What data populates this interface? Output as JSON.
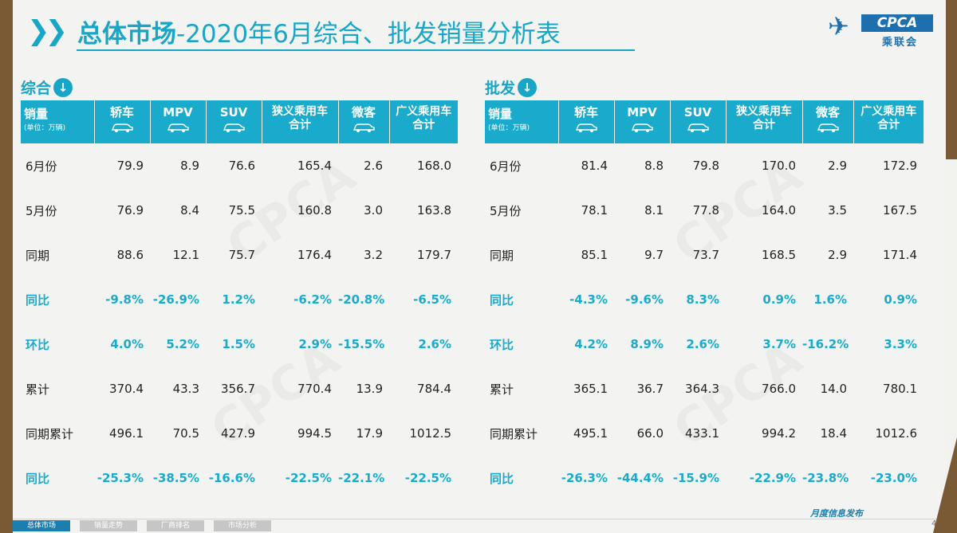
{
  "header": {
    "title_main": "总体市场",
    "title_sub": "-2020年6月综合、批发销量分析表",
    "logo_text": "CPCA",
    "logo_cn": "乘联会"
  },
  "sections": {
    "left_label": "综合",
    "right_label": "批发"
  },
  "table_header": {
    "first_main": "销量",
    "first_sub": "(单位：万辆)",
    "columns": [
      "轿车",
      "MPV",
      "SUV",
      "狭义乘用车合计",
      "微客",
      "广义乘用车合计"
    ]
  },
  "left_table": [
    {
      "label": "6月份",
      "vals": [
        "79.9",
        "8.9",
        "76.6",
        "165.4",
        "2.6",
        "168.0"
      ],
      "hl": false
    },
    {
      "label": "5月份",
      "vals": [
        "76.9",
        "8.4",
        "75.5",
        "160.8",
        "3.0",
        "163.8"
      ],
      "hl": false
    },
    {
      "label": "同期",
      "vals": [
        "88.6",
        "12.1",
        "75.7",
        "176.4",
        "3.2",
        "179.7"
      ],
      "hl": false
    },
    {
      "label": "同比",
      "vals": [
        "-9.8%",
        "-26.9%",
        "1.2%",
        "-6.2%",
        "-20.8%",
        "-6.5%"
      ],
      "hl": true
    },
    {
      "label": "环比",
      "vals": [
        "4.0%",
        "5.2%",
        "1.5%",
        "2.9%",
        "-15.5%",
        "2.6%"
      ],
      "hl": true
    },
    {
      "label": "累计",
      "vals": [
        "370.4",
        "43.3",
        "356.7",
        "770.4",
        "13.9",
        "784.4"
      ],
      "hl": false
    },
    {
      "label": "同期累计",
      "vals": [
        "496.1",
        "70.5",
        "427.9",
        "994.5",
        "17.9",
        "1012.5"
      ],
      "hl": false
    },
    {
      "label": "同比",
      "vals": [
        "-25.3%",
        "-38.5%",
        "-16.6%",
        "-22.5%",
        "-22.1%",
        "-22.5%"
      ],
      "hl": true
    }
  ],
  "right_table": [
    {
      "label": "6月份",
      "vals": [
        "81.4",
        "8.8",
        "79.8",
        "170.0",
        "2.9",
        "172.9"
      ],
      "hl": false
    },
    {
      "label": "5月份",
      "vals": [
        "78.1",
        "8.1",
        "77.8",
        "164.0",
        "3.5",
        "167.5"
      ],
      "hl": false
    },
    {
      "label": "同期",
      "vals": [
        "85.1",
        "9.7",
        "73.7",
        "168.5",
        "2.9",
        "171.4"
      ],
      "hl": false
    },
    {
      "label": "同比",
      "vals": [
        "-4.3%",
        "-9.6%",
        "8.3%",
        "0.9%",
        "1.6%",
        "0.9%"
      ],
      "hl": true
    },
    {
      "label": "环比",
      "vals": [
        "4.2%",
        "8.9%",
        "2.6%",
        "3.7%",
        "-16.2%",
        "3.3%"
      ],
      "hl": true
    },
    {
      "label": "累计",
      "vals": [
        "365.1",
        "36.7",
        "364.3",
        "766.0",
        "14.0",
        "780.1"
      ],
      "hl": false
    },
    {
      "label": "同期累计",
      "vals": [
        "495.1",
        "66.0",
        "433.1",
        "994.2",
        "18.4",
        "1012.6"
      ],
      "hl": false
    },
    {
      "label": "同比",
      "vals": [
        "-26.3%",
        "-44.4%",
        "-15.9%",
        "-22.9%",
        "-23.8%",
        "-23.0%"
      ],
      "hl": true
    }
  ],
  "footer": {
    "nav": [
      "总体市场",
      "销量走势",
      "厂商排名",
      "市场分析"
    ],
    "note": "月度信息发布",
    "page": "4"
  },
  "colors": {
    "accent": "#1aaacb",
    "brand": "#1d6fae"
  },
  "icons": [
    "chevron-right-icon",
    "arrow-down-circle-icon",
    "car-icon"
  ]
}
